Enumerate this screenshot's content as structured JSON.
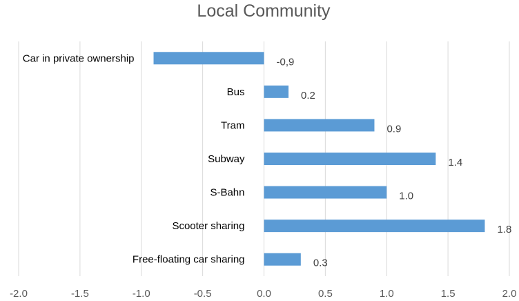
{
  "chart_data": {
    "type": "bar",
    "orientation": "horizontal",
    "title": "Local Community",
    "categories": [
      "Car in private ownership",
      "Bus",
      "Tram",
      "Subway",
      "S-Bahn",
      "Scooter sharing",
      "Free-floating car sharing"
    ],
    "values": [
      -0.9,
      0.2,
      0.9,
      1.4,
      1.0,
      1.8,
      0.3
    ],
    "data_labels": [
      "-0,9",
      "0.2",
      "0.9",
      "1.4",
      "1.0",
      "1.8",
      "0.3"
    ],
    "x_ticks": [
      "-2.0",
      "-1.5",
      "-1.0",
      "-0.5",
      "0.0",
      "0.5",
      "1.0",
      "1.5",
      "2.0"
    ],
    "xlim": [
      -2.0,
      2.0
    ],
    "grid": "vertical",
    "legend": "none",
    "bar_color": "#5b9bd5",
    "grid_color": "#d9d9d9"
  }
}
